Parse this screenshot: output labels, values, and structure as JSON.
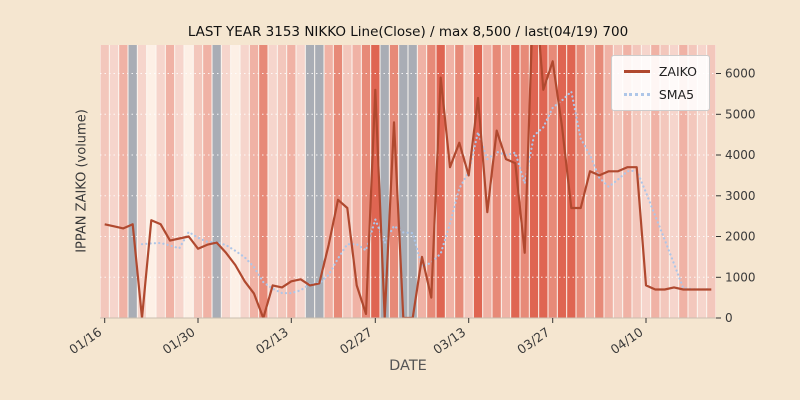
{
  "colors": {
    "figure_bg": "#f5e6d0",
    "plot_bg": "#fcf7f1",
    "zaiko_line": "#b0492f",
    "sma5_line": "#aec6e8",
    "tick_text": "#3a3a3a",
    "gridline": "#ffffff"
  },
  "chart_data": {
    "type": "line",
    "title": "LAST YEAR 3153 NIKKO Line(Close) / max 8,500 / last(04/19) 700",
    "xlabel": "DATE",
    "ylabel": "IPPAN ZAIKO (volume)",
    "ylim": [
      0,
      6700
    ],
    "yticks": [
      0,
      1000,
      2000,
      3000,
      4000,
      5000,
      6000
    ],
    "grid": "horizontal-dashed",
    "legend_position": "upper right",
    "max_value": 8500,
    "last_date": "04/19",
    "last_value": 700,
    "dates": [
      "01/16",
      "01/17",
      "01/18",
      "01/19",
      "01/20",
      "01/23",
      "01/24",
      "01/25",
      "01/26",
      "01/27",
      "01/30",
      "01/31",
      "02/01",
      "02/02",
      "02/03",
      "02/06",
      "02/07",
      "02/08",
      "02/09",
      "02/10",
      "02/13",
      "02/14",
      "02/15",
      "02/16",
      "02/17",
      "02/20",
      "02/21",
      "02/22",
      "02/24",
      "02/27",
      "02/28",
      "03/01",
      "03/02",
      "03/03",
      "03/06",
      "03/07",
      "03/08",
      "03/09",
      "03/10",
      "03/13",
      "03/14",
      "03/15",
      "03/16",
      "03/17",
      "03/20",
      "03/22",
      "03/23",
      "03/24",
      "03/27",
      "03/28",
      "03/29",
      "03/30",
      "03/31",
      "04/03",
      "04/04",
      "04/05",
      "04/06",
      "04/07",
      "04/10",
      "04/11",
      "04/12",
      "04/13",
      "04/14",
      "04/17",
      "04/18",
      "04/19"
    ],
    "xticks": [
      {
        "index": 0,
        "label": "01/16"
      },
      {
        "index": 10,
        "label": "01/30"
      },
      {
        "index": 20,
        "label": "02/13"
      },
      {
        "index": 29,
        "label": "02/27"
      },
      {
        "index": 39,
        "label": "03/13"
      },
      {
        "index": 48,
        "label": "03/27"
      },
      {
        "index": 58,
        "label": "04/10"
      }
    ],
    "series": [
      {
        "name": "ZAIKO",
        "color": "#b0492f",
        "style": "solid",
        "values": [
          2300,
          2250,
          2200,
          2300,
          0,
          2400,
          2300,
          1900,
          1950,
          2000,
          1700,
          1800,
          1850,
          1600,
          1300,
          900,
          600,
          0,
          800,
          750,
          900,
          950,
          800,
          850,
          1800,
          2900,
          2700,
          800,
          100,
          5600,
          0,
          4800,
          0,
          0,
          1500,
          500,
          5900,
          3700,
          4300,
          3500,
          5400,
          2600,
          4600,
          3900,
          3800,
          1600,
          8500,
          5600,
          6300,
          4700,
          2700,
          2700,
          3600,
          3500,
          3600,
          3600,
          3700,
          3700,
          800,
          700,
          700,
          750,
          700,
          700,
          700,
          700
        ]
      },
      {
        "name": "SMA5",
        "color": "#aec6e8",
        "style": "dotted",
        "values": [
          null,
          null,
          null,
          null,
          1810,
          1830,
          1840,
          1780,
          1710,
          2110,
          1970,
          1870,
          1860,
          1790,
          1650,
          1490,
          1250,
          880,
          720,
          610,
          610,
          680,
          840,
          850,
          1060,
          1460,
          1810,
          1810,
          1660,
          2420,
          1840,
          2260,
          2100,
          2080,
          1260,
          1360,
          1580,
          2320,
          3180,
          3580,
          4560,
          3900,
          4080,
          4000,
          4060,
          3300,
          4480,
          4680,
          5160,
          5340,
          5560,
          4400,
          4000,
          3440,
          3220,
          3400,
          3600,
          3620,
          3080,
          2500,
          1920,
          1330,
          730,
          710,
          700,
          710
        ]
      }
    ],
    "band_colors": [
      "#f3c7bc",
      "#f6d5cc",
      "#f0b2a5",
      "#a9adb5",
      "#f6d5cc",
      "#fdf0e6",
      "#f6d5cc",
      "#f0b2a5",
      "#f6d5cc",
      "#fdf0e6",
      "#f3c7bc",
      "#f0b2a5",
      "#a9adb5",
      "#f6d5cc",
      "#fdf0e6",
      "#f6d5cc",
      "#f0b2a5",
      "#e78a78",
      "#f6d5cc",
      "#f3c7bc",
      "#f0b2a5",
      "#f6d5cc",
      "#a9adb5",
      "#a9adb5",
      "#f0b2a5",
      "#e78a78",
      "#f3c7bc",
      "#f0b2a5",
      "#e78a78",
      "#df6552",
      "#a9adb5",
      "#e78a78",
      "#a9adb5",
      "#a9adb5",
      "#f0b2a5",
      "#e78a78",
      "#df6552",
      "#f0b2a5",
      "#e78a78",
      "#f3c7bc",
      "#df6552",
      "#f0b2a5",
      "#e78a78",
      "#f0b2a5",
      "#df6552",
      "#e78a78",
      "#df6552",
      "#df6552",
      "#e78a78",
      "#df6552",
      "#df6552",
      "#e78a78",
      "#f0b2a5",
      "#e78a78",
      "#f0b2a5",
      "#f3c7bc",
      "#f0b2a5",
      "#f3c7bc",
      "#f6d5cc",
      "#f0b2a5",
      "#f3c7bc",
      "#f6d5cc",
      "#f0b2a5",
      "#f3c7bc",
      "#f6d5cc",
      "#f3c7bc"
    ]
  }
}
